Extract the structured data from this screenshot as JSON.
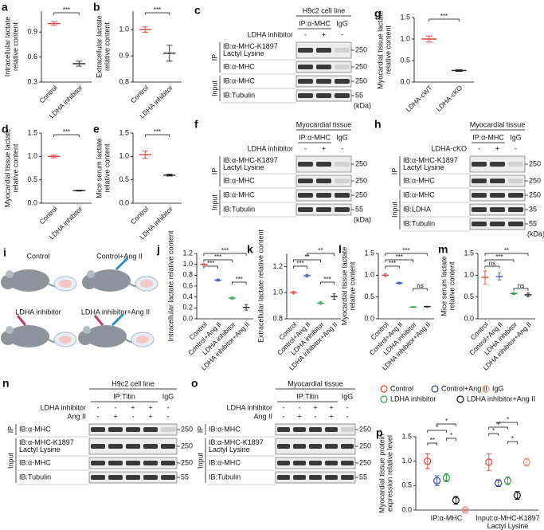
{
  "chart_data": [
    {
      "type": "dot",
      "panel": "a",
      "ylabel": [
        "Intracellular lactate",
        "relative content"
      ],
      "categories": [
        "Control",
        "LDHA inhibitor"
      ],
      "values": [
        1.0,
        0.52
      ],
      "errors": [
        0.02,
        0.03
      ],
      "colors": [
        "#e8413c",
        "#222222"
      ],
      "ylim": [
        0.3,
        1.15
      ],
      "yticks": [
        0.3,
        0.6,
        0.9
      ],
      "annotations": [
        "***"
      ]
    },
    {
      "type": "dot",
      "panel": "b",
      "ylabel": [
        "Extracellular lactate",
        "relative content"
      ],
      "categories": [
        "Control",
        "LDHA inhibitor"
      ],
      "values": [
        1.0,
        0.91
      ],
      "errors": [
        0.01,
        0.03
      ],
      "colors": [
        "#e8413c",
        "#222222"
      ],
      "ylim": [
        0.8,
        1.07
      ],
      "yticks": [
        0.8,
        0.9,
        {
          "value": 1,
          "label": "1.0"
        }
      ],
      "annotations": [
        "***"
      ]
    },
    {
      "type": "dot",
      "panel": "g",
      "ylabel": [
        "Myocardial tissue lactate",
        "relative content"
      ],
      "categories": [
        "LDHA-cWT",
        "LDHA-cKO"
      ],
      "values": [
        1.0,
        0.27
      ],
      "errors": [
        0.07,
        0.02
      ],
      "colors": [
        "#e8413c",
        "#222222"
      ],
      "ylim": [
        0,
        1.5
      ],
      "yticks": [
        {
          "value": 0,
          "label": "0.0"
        },
        0.5,
        {
          "value": 1,
          "label": "1.0"
        },
        1.5
      ],
      "annotations": [
        "***"
      ]
    },
    {
      "type": "dot",
      "panel": "d",
      "ylabel": [
        "Myocardial tissue lactate",
        "relative content"
      ],
      "categories": [
        "Control",
        "LDHA inhibitor"
      ],
      "values": [
        1.0,
        0.27
      ],
      "errors": [
        0.03,
        0.01
      ],
      "colors": [
        "#e8413c",
        "#222222"
      ],
      "ylim": [
        0,
        1.5
      ],
      "yticks": [
        {
          "value": 0,
          "label": "0.0"
        },
        0.5,
        {
          "value": 1,
          "label": "1.0"
        },
        1.5
      ],
      "annotations": [
        "***"
      ]
    },
    {
      "type": "dot",
      "panel": "e",
      "ylabel": [
        "Mice serum lactate",
        "relative content"
      ],
      "categories": [
        "Control",
        "LDHA inhibitor"
      ],
      "values": [
        1.04,
        0.6
      ],
      "errors": [
        0.08,
        0.02
      ],
      "colors": [
        "#e8413c",
        "#222222"
      ],
      "ylim": [
        0,
        1.5
      ],
      "yticks": [
        {
          "value": 0,
          "label": "0.0"
        },
        0.5,
        {
          "value": 1,
          "label": "1.0"
        },
        1.5
      ],
      "annotations": [
        "***"
      ]
    },
    {
      "type": "dot",
      "panel": "j",
      "ylabel": [
        "Intracellular lactate relative content"
      ],
      "categories": [
        "Control",
        "Control+Ang II",
        "LDHA inhibitor",
        "LDHA inhibitor+Ang II"
      ],
      "values": [
        1.0,
        0.71,
        0.38,
        0.21
      ],
      "errors": [
        0.01,
        0.02,
        0.02,
        0.05
      ],
      "colors": [
        "#e8413c",
        "#3a59c0",
        "#2e9e4a",
        "#222222"
      ],
      "ylim": [
        0,
        1.2
      ],
      "yticks": [
        {
          "value": 0,
          "label": "0.0"
        },
        0.2,
        0.4,
        0.6,
        0.8,
        {
          "value": 1,
          "label": "1.0"
        },
        1.2
      ],
      "annotations": [
        "***",
        "***",
        "***",
        "***"
      ]
    },
    {
      "type": "dot",
      "panel": "k",
      "ylabel": [
        "Extracellular lactate relative content"
      ],
      "categories": [
        "Control",
        "Control+Ang II",
        "LDHA inhibitor",
        "LDHA inhibitor+Ang II"
      ],
      "values": [
        1.0,
        1.13,
        0.92,
        0.97
      ],
      "errors": [
        0.01,
        0.01,
        0.01,
        0.02
      ],
      "colors": [
        "#e8413c",
        "#3a59c0",
        "#2e9e4a",
        "#222222"
      ],
      "ylim": [
        0.8,
        1.3
      ],
      "yticks": [
        0.8,
        {
          "value": 1,
          "label": "1.0"
        },
        1.2
      ],
      "annotations": [
        "***",
        "**",
        "**",
        "***"
      ]
    },
    {
      "type": "dot",
      "panel": "l",
      "ylabel": [
        "Myocardial tissue lactate",
        "relative content"
      ],
      "categories": [
        "Control",
        "Control+Ang II",
        "LDHA inhibitor",
        "LDHA inhibitor+Ang II"
      ],
      "values": [
        1.0,
        0.82,
        0.27,
        0.28
      ],
      "errors": [
        0.03,
        0.02,
        0.01,
        0.01
      ],
      "colors": [
        "#e8413c",
        "#3a59c0",
        "#2e9e4a",
        "#222222"
      ],
      "ylim": [
        0,
        1.5
      ],
      "yticks": [
        {
          "value": 0,
          "label": "0.0"
        },
        0.5,
        {
          "value": 1,
          "label": "1.0"
        },
        1.5
      ],
      "annotations": [
        "***",
        "***",
        "***",
        "ns"
      ]
    },
    {
      "type": "dot",
      "panel": "m",
      "ylabel": [
        "Mice serum lactate",
        "relative content"
      ],
      "categories": [
        "Control",
        "Control+Ang II",
        "LDHA inhibitor",
        "LDHA inhibitor+Ang II"
      ],
      "values": [
        0.95,
        0.97,
        0.58,
        0.55
      ],
      "errors": [
        0.15,
        0.08,
        0.02,
        0.04
      ],
      "colors": [
        "#e8413c",
        "#3a59c0",
        "#2e9e4a",
        "#222222"
      ],
      "ylim": [
        0,
        1.5
      ],
      "yticks": [
        {
          "value": 0,
          "label": "0.0"
        },
        0.5,
        {
          "value": 1,
          "label": "1.0"
        },
        1.5
      ],
      "annotations": [
        "ns",
        "***",
        "**",
        "ns"
      ]
    },
    {
      "type": "grouped-dot",
      "panel": "p",
      "ylabel": [
        "Myocardial tissue protein",
        "expression relative level"
      ],
      "categories": [
        "IP:α-MHC",
        "Input:α-MHC-K1897 Lactyl Lysine"
      ],
      "series": [
        {
          "name": "Control",
          "color": "#e8413c",
          "values": [
            1.0,
            0.98
          ],
          "errors": [
            0.15,
            0.17
          ]
        },
        {
          "name": "Control+Ang II",
          "color": "#2a3ea0",
          "values": [
            0.6,
            0.55
          ],
          "errors": [
            0.1,
            0.07
          ]
        },
        {
          "name": "IgG",
          "color": "#f08a7a",
          "values": [
            0.0,
            0.98
          ],
          "errors": [
            0.02,
            0.08
          ]
        },
        {
          "name": "LDHA inhibitor",
          "color": "#2e9e4a",
          "values": [
            0.66,
            0.6
          ],
          "errors": [
            0.08,
            0.08
          ]
        },
        {
          "name": "LDHA inhibitor+Ang II",
          "color": "#111111",
          "values": [
            0.2,
            0.3
          ],
          "errors": [
            0.08,
            0.08
          ]
        }
      ],
      "ylim": [
        0,
        1.5
      ],
      "yticks": [
        {
          "value": 0,
          "label": "0.0"
        },
        0.5,
        {
          "value": 1,
          "label": "1.0"
        },
        1.5
      ],
      "annotations": [
        "**",
        "*",
        "*",
        "*",
        "*",
        "**",
        "*",
        "*"
      ]
    }
  ],
  "blots": [
    {
      "panel": "c",
      "title": "H9c2 cell line",
      "ip": "IP:α-MHC",
      "igg": "IgG",
      "conditions": [
        {
          "name": "LDHA inhibitor",
          "signs": [
            "-",
            "+",
            "-"
          ]
        }
      ],
      "sections": [
        {
          "name": "IP",
          "rows": [
            {
              "label": [
                "IB:α-MHC-K1897",
                "Lactyl Lysine"
              ],
              "marker": 250
            },
            {
              "label": [
                "IB:α-MHC"
              ],
              "marker": 250
            }
          ]
        },
        {
          "name": "Input",
          "rows": [
            {
              "label": [
                "IB:α-MHC"
              ],
              "marker": 250
            },
            {
              "label": [
                "IB:Tubulin"
              ],
              "marker": 55
            }
          ]
        }
      ],
      "unit": "(kDa)"
    },
    {
      "panel": "f",
      "title": "Myocardial tissue",
      "ip": "IP:α-MHC",
      "igg": "IgG",
      "conditions": [
        {
          "name": "LDHA inhibitor",
          "signs": [
            "-",
            "+",
            "-"
          ]
        }
      ],
      "sections": [
        {
          "name": "IP",
          "rows": [
            {
              "label": [
                "IB:α-MHC-K1897",
                "Lactyl Lysine"
              ],
              "marker": 250
            },
            {
              "label": [
                "IB:α-MHC"
              ],
              "marker": 250
            }
          ]
        },
        {
          "name": "Input",
          "rows": [
            {
              "label": [
                "IB:α-MHC"
              ],
              "marker": 250
            },
            {
              "label": [
                "IB:Tubulin"
              ],
              "marker": 55
            }
          ]
        }
      ],
      "unit": "(kDa)"
    },
    {
      "panel": "h",
      "title": "Myocardial tissue",
      "ip": "IP:α-MHC",
      "igg": "IgG",
      "conditions": [
        {
          "name": "LDHA-cKO",
          "signs": [
            "-",
            "+",
            "-"
          ]
        }
      ],
      "sections": [
        {
          "name": "IP",
          "rows": [
            {
              "label": [
                "IB:α-MHC-K1897",
                "Lactyl Lysine"
              ],
              "marker": 250
            },
            {
              "label": [
                "IB:α-MHC"
              ],
              "marker": 250
            }
          ]
        },
        {
          "name": "Input",
          "rows": [
            {
              "label": [
                "IB:α-MHC"
              ],
              "marker": 250
            },
            {
              "label": [
                "IB:LDHA"
              ],
              "marker": 35
            },
            {
              "label": [
                "IB:Tubulin"
              ],
              "marker": 55
            }
          ]
        }
      ],
      "unit": "(kDa)"
    },
    {
      "panel": "n",
      "title": "H9c2 cell line",
      "ip": "IP:Titin",
      "igg": "IgG",
      "conditions": [
        {
          "name": "LDHA inhibitor",
          "signs": [
            "-",
            "-",
            "+",
            "+",
            "-"
          ]
        },
        {
          "name": "Ang II",
          "signs": [
            "-",
            "+",
            "-",
            "+",
            "-"
          ]
        }
      ],
      "sections": [
        {
          "name": "IP",
          "rows": [
            {
              "label": [
                "IB:α-MHC"
              ],
              "marker": 250
            }
          ]
        },
        {
          "name": "Input",
          "rows": [
            {
              "label": [
                "IB:α-MHC-K1897",
                "Lactyl Lysine"
              ],
              "marker": 250
            },
            {
              "label": [
                "IB:α-MHC"
              ],
              "marker": 250
            },
            {
              "label": [
                "IB:Tubulin"
              ],
              "marker": 55
            }
          ]
        }
      ]
    },
    {
      "panel": "o",
      "title": "Myocardial tissue",
      "ip": "IP:Titin",
      "igg": "IgG",
      "conditions": [
        {
          "name": "LDHA inhibitor",
          "signs": [
            "-",
            "-",
            "+",
            "+",
            "-"
          ]
        },
        {
          "name": "Ang II",
          "signs": [
            "-",
            "+",
            "-",
            "+",
            "-"
          ]
        }
      ],
      "sections": [
        {
          "name": "IP",
          "rows": [
            {
              "label": [
                "IB:α-MHC"
              ],
              "marker": 250
            }
          ]
        },
        {
          "name": "Input",
          "rows": [
            {
              "label": [
                "IB:α-MHC-K1897",
                "Lactyl Lysine"
              ],
              "marker": 250
            },
            {
              "label": [
                "IB:α-MHC"
              ],
              "marker": 250
            },
            {
              "label": [
                "IB:Tubulin"
              ],
              "marker": 55
            }
          ]
        }
      ]
    }
  ],
  "illustration": {
    "panel": "i",
    "labels": [
      "Control",
      "Control+Ang II",
      "LDHA inhibitor",
      "LDHA inhibitor+Ang II"
    ]
  }
}
